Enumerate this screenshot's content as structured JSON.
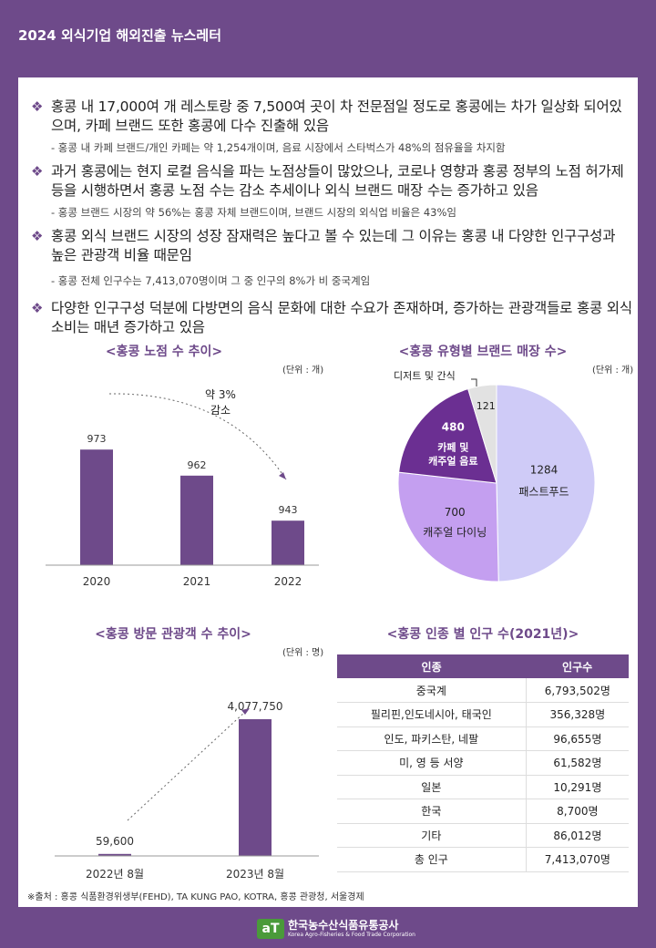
{
  "header": {
    "title": "2024 외식기업 해외진출 뉴스레터"
  },
  "bullets": [
    {
      "text": "홍콩 내 17,000여 개 레스토랑 중 7,500여 곳이 차 전문점일 정도로 홍콩에는 차가 일상화 되어있으며, 카페 브랜드 또한 홍콩에 다수 진출해 있음",
      "sub": "- 홍콩 내 카페 브랜드/개인 카페는 약 1,254개이며, 음료 시장에서 스타벅스가 48%의 점유율을 차지함"
    },
    {
      "text": "과거 홍콩에는 현지 로컬 음식을 파는 노점상들이 많았으나, 코로나 영향과 홍콩 정부의 노점 허가제 등을 시행하면서 홍콩 노점 수는 감소 추세이나 외식 브랜드 매장 수는 증가하고 있음",
      "sub": "- 홍콩 브랜드 시장의 약 56%는 홍콩 자체 브랜드이며, 브랜드 시장의 외식업 비율은 43%임"
    },
    {
      "text": "홍콩 외식 브랜드 시장의 성장 잠재력은 높다고 볼 수 있는데 그 이유는 홍콩 내 다양한 인구구성과 높은 관광객 비율 때문임",
      "sub": "- 홍콩 전체 인구수는 7,413,070명이며 그 중 인구의 8%가 비 중국계임"
    },
    {
      "text": "다양한 인구구성 덕분에 다방면의 음식 문화에 대한 수요가 존재하며, 증가하는 관광객들로 홍콩 외식 소비는 매년 증가하고 있음",
      "sub": ""
    }
  ],
  "bullet_mark": "❖",
  "stall_chart": {
    "title": "<홍콩 노점 수 추이>",
    "unit": "(단위 : 개)",
    "annotation_line1": "약 3%",
    "annotation_line2": "감소"
  },
  "pie_chart": {
    "title": "<홍콩 유형별 브랜드 매장 수>",
    "unit": "(단위 : 개)",
    "outside_label": "디저트 및 간식"
  },
  "tourist_chart": {
    "title": "<홍콩 방문 관광객 수 추이>",
    "unit": "(단위 : 명)"
  },
  "population": {
    "title": "<홍콩 인종 별 인구 수(2021년)>",
    "headers": [
      "인종",
      "인구수"
    ],
    "rows": [
      [
        "중국계",
        "6,793,502명"
      ],
      [
        "필리핀,인도네시아, 태국인",
        "356,328명"
      ],
      [
        "인도, 파키스탄, 네팔",
        "96,655명"
      ],
      [
        "미, 영 등 서양",
        "61,582명"
      ],
      [
        "일본",
        "10,291명"
      ],
      [
        "한국",
        "8,700명"
      ],
      [
        "기타",
        "86,012명"
      ],
      [
        "총 인구",
        "7,413,070명"
      ]
    ]
  },
  "source": "※출처 : 홍콩 식품환경위생부(FEHD), TA KUNG PAO, KOTRA, 홍콩 관광청, 서울경제",
  "footer": {
    "logo_mark": "aT",
    "logo_name": "한국농수산식품유통공사",
    "logo_sub": "Korea Agro-Fisheries & Food Trade Corporation"
  },
  "colors": {
    "primary": "#6e4a8a",
    "pie_fastfood": "#cfcbf7",
    "pie_casual": "#c49ff0",
    "pie_cafe": "#6b2f92",
    "pie_dessert": "#e2e2e2"
  },
  "chart_data": [
    {
      "type": "bar",
      "title": "<홍콩 노점 수 추이>",
      "categories": [
        "2020",
        "2021",
        "2022"
      ],
      "values": [
        973,
        962,
        943
      ],
      "ylim": [
        930,
        980
      ],
      "xlabel": "",
      "ylabel": ""
    },
    {
      "type": "pie",
      "title": "<홍콩 유형별 브랜드 매장 수>",
      "labels": [
        "패스트푸드",
        "캐주얼 다이닝",
        "카페 및 캐주얼 음료",
        "디저트 및 간식"
      ],
      "values": [
        1284,
        700,
        480,
        121
      ]
    },
    {
      "type": "bar",
      "title": "<홍콩 방문 관광객 수 추이>",
      "categories": [
        "2022년 8월",
        "2023년 8월"
      ],
      "values": [
        59600,
        4077750
      ],
      "value_labels": [
        "59,600",
        "4,077,750"
      ]
    }
  ]
}
